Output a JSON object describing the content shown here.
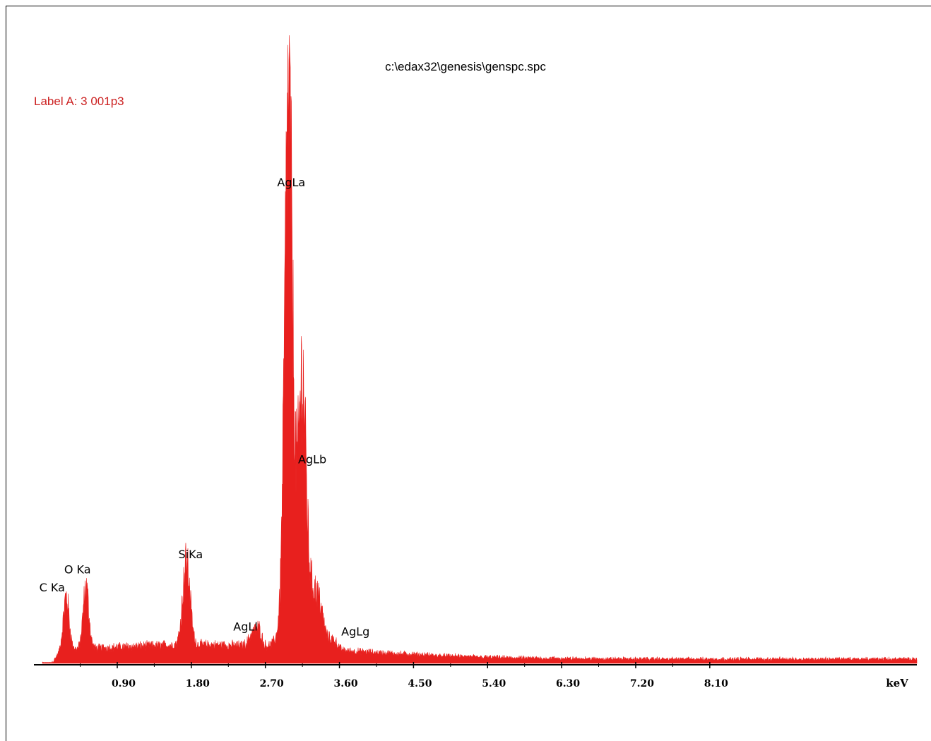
{
  "header": {
    "file_path": "c:\\edax32\\genesis\\genspc.spc",
    "label": "Label A: 3 001p3"
  },
  "colors": {
    "spectrum": "#e8201e",
    "label_text": "#cc2222",
    "axis": "#000000"
  },
  "chart_data": {
    "type": "area",
    "title": "c:\\edax32\\genesis\\genspc.spc",
    "xlabel": "keV",
    "ylabel": "",
    "xlim": [
      0,
      9.6
    ],
    "ylim": [
      0,
      100
    ],
    "x_ticks": [
      0.9,
      1.8,
      2.7,
      3.6,
      4.5,
      5.4,
      6.3,
      7.2,
      8.1
    ],
    "x_tick_labels": [
      "0.90",
      "1.80",
      "2.70",
      "3.60",
      "4.50",
      "5.40",
      "6.30",
      "7.20",
      "8.10"
    ],
    "unit_label": "keV",
    "peaks": [
      {
        "label": "C Ka",
        "x": 0.28,
        "y": 14
      },
      {
        "label": "O Ka",
        "x": 0.52,
        "y": 16
      },
      {
        "label": "SiKa",
        "x": 1.74,
        "y": 21
      },
      {
        "label": "AgLl",
        "x": 2.63,
        "y": 6
      },
      {
        "label": "AgLa",
        "x": 2.98,
        "y": 100
      },
      {
        "label": "AgLb",
        "x": 3.15,
        "y": 41
      },
      {
        "label": "AgLg",
        "x": 3.52,
        "y": 5
      }
    ]
  }
}
